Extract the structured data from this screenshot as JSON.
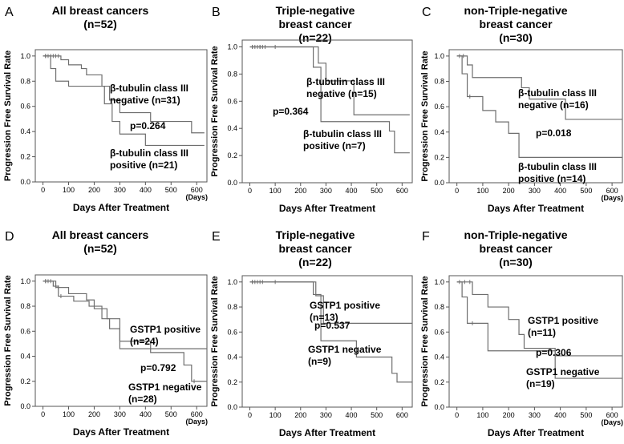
{
  "chart_data": [
    {
      "type": "line",
      "panel": "A",
      "title": [
        "All breast cancers",
        "(n=52)"
      ],
      "xlabel": "Days After Treatment",
      "ylabel": "Progression Free Survival Rate",
      "x_unit": "(Days)",
      "xlim": [
        -30,
        640
      ],
      "ylim": [
        0,
        1.05
      ],
      "xticks": [
        "0",
        "100",
        "200",
        "300",
        "400",
        "500",
        "600"
      ],
      "yticks": [
        "0.0",
        "0.2",
        "0.4",
        "0.6",
        "0.8",
        "1.0"
      ],
      "series": [
        {
          "name": "β-tubulin class III negative (n=31)",
          "x": [
            0,
            70,
            100,
            150,
            170,
            230,
            260,
            300,
            420,
            580,
            630
          ],
          "y": [
            1.0,
            0.97,
            0.93,
            0.9,
            0.85,
            0.76,
            0.65,
            0.55,
            0.48,
            0.39,
            0.39
          ],
          "censored": [
            [
              10,
              1.0
            ],
            [
              20,
              1.0
            ],
            [
              30,
              1.0
            ],
            [
              40,
              1.0
            ],
            [
              50,
              1.0
            ],
            [
              60,
              1.0
            ]
          ]
        },
        {
          "name": "β-tubulin class III positive (n=21)",
          "x": [
            0,
            30,
            50,
            100,
            240,
            270,
            300,
            400,
            630
          ],
          "y": [
            1.0,
            0.9,
            0.8,
            0.76,
            0.62,
            0.48,
            0.38,
            0.29,
            0.29
          ],
          "censored": [
            [
              10,
              1.0
            ]
          ]
        }
      ],
      "annotations": [
        {
          "lines": [
            "β-tubulin class III",
            "negative (n=31)"
          ]
        },
        {
          "lines": [
            "p=0.264"
          ]
        },
        {
          "lines": [
            "β-tubulin class III",
            "positive (n=21)"
          ]
        }
      ]
    },
    {
      "type": "line",
      "panel": "B",
      "title": [
        "Triple-negative",
        "breast cancer",
        "(n=22)"
      ],
      "xlabel": "Days After Treatment",
      "ylabel": "Progression Free Survival Rate",
      "x_unit": "",
      "xlim": [
        -30,
        640
      ],
      "ylim": [
        0,
        1.05
      ],
      "xticks": [
        "0",
        "100",
        "200",
        "300",
        "400",
        "500",
        "600"
      ],
      "yticks": [
        "0.0",
        "0.2",
        "0.4",
        "0.6",
        "0.8",
        "1.0"
      ],
      "series": [
        {
          "name": "β-tubulin class III negative (n=15)",
          "x": [
            0,
            270,
            300,
            410,
            630
          ],
          "y": [
            1.0,
            0.88,
            0.75,
            0.5,
            0.5
          ],
          "censored": [
            [
              10,
              1.0
            ],
            [
              20,
              1.0
            ],
            [
              30,
              1.0
            ],
            [
              40,
              1.0
            ],
            [
              50,
              1.0
            ],
            [
              60,
              1.0
            ],
            [
              100,
              1.0
            ]
          ]
        },
        {
          "name": "β-tubulin class III positive (n=7)",
          "x": [
            0,
            250,
            280,
            550,
            570,
            630
          ],
          "y": [
            1.0,
            0.85,
            0.45,
            0.38,
            0.22,
            0.22
          ],
          "censored": [
            [
              10,
              1.0
            ],
            [
              40,
              1.0
            ]
          ]
        }
      ],
      "annotations": [
        {
          "lines": [
            "β-tubulin class III",
            "negative (n=15)"
          ]
        },
        {
          "lines": [
            "p=0.364"
          ]
        },
        {
          "lines": [
            "β-tubulin class III",
            "positive (n=7)"
          ]
        }
      ]
    },
    {
      "type": "line",
      "panel": "C",
      "title": [
        "non-Triple-negative",
        "breast cancer",
        "(n=30)"
      ],
      "xlabel": "Days After Treatment",
      "ylabel": "Progression Free Survival Rate",
      "x_unit": "(Days)",
      "xlim": [
        -30,
        640
      ],
      "ylim": [
        0,
        1.05
      ],
      "xticks": [
        "0",
        "100",
        "200",
        "300",
        "400",
        "500",
        "600"
      ],
      "yticks": [
        "0.0",
        "0.2",
        "0.4",
        "0.6",
        "0.8",
        "1.0"
      ],
      "series": [
        {
          "name": "β-tubulin class III negative (n=16)",
          "x": [
            0,
            40,
            60,
            100,
            250,
            280,
            300,
            420,
            640
          ],
          "y": [
            1.0,
            0.93,
            0.83,
            0.83,
            0.75,
            0.66,
            0.66,
            0.5,
            0.5
          ],
          "censored": [
            [
              10,
              1.0
            ],
            [
              25,
              1.0
            ]
          ]
        },
        {
          "name": "β-tubulin class III positive (n=14)",
          "x": [
            0,
            20,
            40,
            100,
            150,
            200,
            240,
            640
          ],
          "y": [
            1.0,
            0.86,
            0.68,
            0.57,
            0.48,
            0.39,
            0.2,
            0.2
          ],
          "censored": [
            [
              50,
              0.68
            ]
          ]
        }
      ],
      "annotations": [
        {
          "lines": [
            "β-tubulin class III",
            "negative (n=16)"
          ]
        },
        {
          "lines": [
            "p=0.018"
          ]
        },
        {
          "lines": [
            "β-tubulin class III",
            "positive (n=14)"
          ]
        }
      ]
    },
    {
      "type": "line",
      "panel": "D",
      "title": [
        "All breast cancers",
        "(n=52)"
      ],
      "xlabel": "Days After Treatment",
      "ylabel": "Progression Free Survival Rate",
      "x_unit": "(Days)",
      "xlim": [
        -30,
        640
      ],
      "ylim": [
        0,
        1.05
      ],
      "xticks": [
        "0",
        "100",
        "200",
        "300",
        "400",
        "500",
        "600"
      ],
      "yticks": [
        "0.0",
        "0.2",
        "0.4",
        "0.6",
        "0.8",
        "1.0"
      ],
      "series": [
        {
          "name": "GSTP1 positive (n=24)",
          "x": [
            0,
            50,
            100,
            170,
            200,
            250,
            300,
            640
          ],
          "y": [
            1.0,
            0.95,
            0.9,
            0.85,
            0.78,
            0.7,
            0.46,
            0.46
          ],
          "censored": [
            [
              10,
              1.0
            ],
            [
              30,
              1.0
            ],
            [
              60,
              0.95
            ]
          ]
        },
        {
          "name": "GSTP1 negative (n=28)",
          "x": [
            0,
            40,
            60,
            120,
            180,
            230,
            260,
            300,
            420,
            550,
            580,
            640
          ],
          "y": [
            1.0,
            0.96,
            0.88,
            0.84,
            0.8,
            0.7,
            0.62,
            0.52,
            0.43,
            0.33,
            0.2,
            0.2
          ],
          "censored": [
            [
              10,
              1.0
            ],
            [
              20,
              1.0
            ],
            [
              50,
              0.96
            ],
            [
              70,
              0.88
            ],
            [
              590,
              0.2
            ]
          ]
        }
      ],
      "annotations": [
        {
          "lines": [
            "GSTP1 positive",
            "(n=24)"
          ]
        },
        {
          "lines": [
            "p=0.792"
          ]
        },
        {
          "lines": [
            "GSTP1 negative",
            "(n=28)"
          ]
        }
      ]
    },
    {
      "type": "line",
      "panel": "E",
      "title": [
        "Triple-negative",
        "breast cancer",
        "(n=22)"
      ],
      "xlabel": "Days After Treatment",
      "ylabel": "Progression Free Survival Rate",
      "x_unit": "",
      "xlim": [
        -30,
        640
      ],
      "ylim": [
        0,
        1.05
      ],
      "xticks": [
        "0",
        "100",
        "200",
        "300",
        "400",
        "500",
        "600"
      ],
      "yticks": [
        "0.0",
        "0.2",
        "0.4",
        "0.6",
        "0.8",
        "1.0"
      ],
      "series": [
        {
          "name": "GSTP1 positive (n=13)",
          "x": [
            0,
            260,
            290,
            640
          ],
          "y": [
            1.0,
            0.89,
            0.67,
            0.67
          ],
          "censored": [
            [
              10,
              1.0
            ],
            [
              20,
              1.0
            ],
            [
              30,
              1.0
            ],
            [
              50,
              1.0
            ],
            [
              100,
              1.0
            ]
          ]
        },
        {
          "name": "GSTP1 negative (n=9)",
          "x": [
            0,
            250,
            280,
            420,
            560,
            580,
            640
          ],
          "y": [
            1.0,
            0.9,
            0.53,
            0.4,
            0.27,
            0.2,
            0.2
          ],
          "censored": [
            [
              10,
              1.0
            ],
            [
              40,
              1.0
            ]
          ]
        }
      ],
      "annotations": [
        {
          "lines": [
            "GSTP1 positive",
            "(n=13)"
          ]
        },
        {
          "lines": [
            "p=0.537"
          ]
        },
        {
          "lines": [
            "GSTP1 negative",
            "(n=9)"
          ]
        }
      ]
    },
    {
      "type": "line",
      "panel": "F",
      "title": [
        "non-Triple-negative",
        "breast cancer",
        "(n=30)"
      ],
      "xlabel": "Days After Treatment",
      "ylabel": "Progression Free Survival Rate",
      "x_unit": "(Days)",
      "xlim": [
        -30,
        640
      ],
      "ylim": [
        0,
        1.05
      ],
      "xticks": [
        "0",
        "100",
        "200",
        "300",
        "400",
        "500",
        "600"
      ],
      "yticks": [
        "0.0",
        "0.2",
        "0.4",
        "0.6",
        "0.8",
        "1.0"
      ],
      "series": [
        {
          "name": "GSTP1 positive (n=11)",
          "x": [
            0,
            60,
            120,
            200,
            240,
            260,
            380,
            640
          ],
          "y": [
            1.0,
            0.9,
            0.8,
            0.7,
            0.58,
            0.47,
            0.41,
            0.41
          ],
          "censored": [
            [
              10,
              1.0
            ],
            [
              30,
              1.0
            ],
            [
              50,
              1.0
            ]
          ]
        },
        {
          "name": "GSTP1 negative (n=19)",
          "x": [
            0,
            20,
            40,
            120,
            380,
            640
          ],
          "y": [
            1.0,
            0.88,
            0.67,
            0.45,
            0.23,
            0.23
          ],
          "censored": [
            [
              60,
              0.67
            ]
          ]
        }
      ],
      "annotations": [
        {
          "lines": [
            "GSTP1 positive",
            "(n=11)"
          ]
        },
        {
          "lines": [
            "p=0.306"
          ]
        },
        {
          "lines": [
            "GSTP1 negative",
            "(n=19)"
          ]
        }
      ]
    }
  ]
}
